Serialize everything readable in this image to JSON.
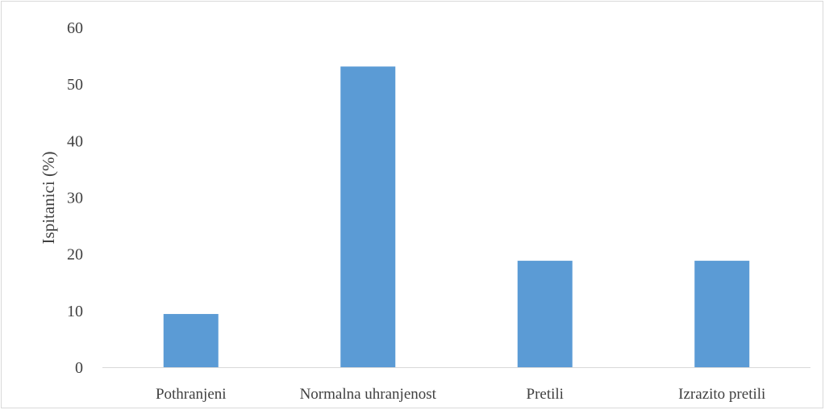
{
  "chart_data": {
    "type": "bar",
    "categories": [
      "Pothranjeni",
      "Normalna uhranjenost",
      "Pretili",
      "Izrazito pretili"
    ],
    "values": [
      9.4,
      53.1,
      18.8,
      18.8
    ],
    "title": "",
    "xlabel": "",
    "ylabel": "Ispitanici (%)",
    "ylim": [
      0,
      60
    ],
    "yticks": [
      0,
      10,
      20,
      30,
      40,
      50,
      60
    ],
    "grid": false,
    "legend": "none",
    "bar_color": "#5b9bd5",
    "axis_color": "#d9d9d9",
    "text_color": "#404040"
  }
}
